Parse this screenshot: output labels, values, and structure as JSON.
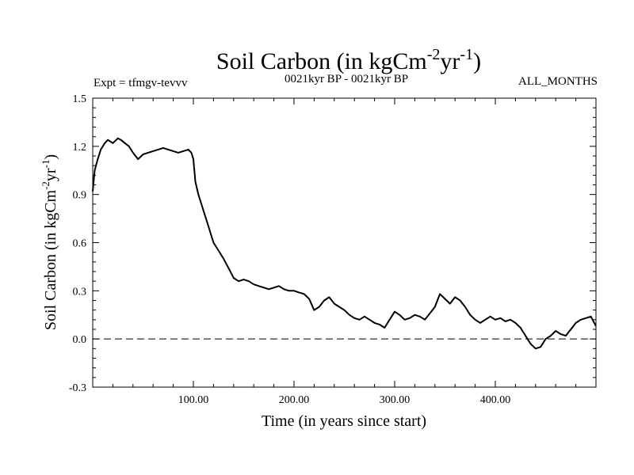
{
  "chart_data": {
    "type": "line",
    "title": {
      "prefix": "Soil Carbon (in kgCm",
      "sup1": "-2",
      "mid": "yr",
      "sup2": "-1",
      "suffix": ")"
    },
    "experiment": "Expt = tfmgv-tevvv",
    "period": "0021kyr BP - 0021kyr BP",
    "months": "ALL_MONTHS",
    "xlabel": "Time (in years since start)",
    "ylabel": {
      "prefix": "Soil Carbon (in kgCm",
      "sup1": "-2",
      "mid": "yr",
      "sup2": "-1",
      "suffix": ")"
    },
    "xlim": [
      0,
      500
    ],
    "ylim": [
      -0.3,
      1.5
    ],
    "x_ticks": [
      100,
      200,
      300,
      400
    ],
    "x_tick_labels": [
      "100.00",
      "200.00",
      "300.00",
      "400.00"
    ],
    "y_ticks": [
      -0.3,
      0.0,
      0.3,
      0.6,
      0.9,
      1.2,
      1.5
    ],
    "y_tick_labels": [
      "-0.3",
      "0.0",
      "0.3",
      "0.6",
      "0.9",
      "1.2",
      "1.5"
    ],
    "reference_line": {
      "y": 0.0,
      "style": "dashed"
    },
    "grid": false,
    "series": [
      {
        "x": [
          0,
          2,
          5,
          8,
          12,
          15,
          20,
          25,
          28,
          32,
          36,
          40,
          45,
          50,
          55,
          60,
          65,
          70,
          75,
          80,
          85,
          90,
          95,
          98,
          100,
          102,
          105,
          110,
          115,
          120,
          125,
          130,
          135,
          140,
          145,
          150,
          155,
          160,
          165,
          170,
          175,
          180,
          185,
          190,
          195,
          200,
          205,
          210,
          215,
          220,
          225,
          230,
          235,
          240,
          245,
          250,
          255,
          260,
          265,
          270,
          275,
          280,
          285,
          290,
          295,
          300,
          305,
          310,
          315,
          320,
          325,
          330,
          335,
          340,
          345,
          350,
          355,
          360,
          365,
          370,
          375,
          380,
          385,
          390,
          395,
          400,
          405,
          410,
          415,
          420,
          425,
          430,
          435,
          440,
          445,
          450,
          455,
          460,
          465,
          470,
          475,
          480,
          485,
          490,
          495,
          500
        ],
        "y": [
          0.92,
          1.05,
          1.12,
          1.18,
          1.22,
          1.24,
          1.22,
          1.25,
          1.24,
          1.22,
          1.2,
          1.16,
          1.12,
          1.15,
          1.16,
          1.17,
          1.18,
          1.19,
          1.18,
          1.17,
          1.16,
          1.17,
          1.18,
          1.16,
          1.12,
          0.98,
          0.9,
          0.8,
          0.7,
          0.6,
          0.55,
          0.5,
          0.44,
          0.38,
          0.36,
          0.37,
          0.36,
          0.34,
          0.33,
          0.32,
          0.31,
          0.32,
          0.33,
          0.31,
          0.3,
          0.3,
          0.29,
          0.28,
          0.25,
          0.18,
          0.2,
          0.24,
          0.26,
          0.22,
          0.2,
          0.18,
          0.15,
          0.13,
          0.12,
          0.14,
          0.12,
          0.1,
          0.09,
          0.07,
          0.12,
          0.17,
          0.15,
          0.12,
          0.13,
          0.15,
          0.14,
          0.12,
          0.16,
          0.2,
          0.28,
          0.25,
          0.22,
          0.26,
          0.24,
          0.2,
          0.15,
          0.12,
          0.1,
          0.12,
          0.14,
          0.12,
          0.13,
          0.11,
          0.12,
          0.1,
          0.07,
          0.02,
          -0.03,
          -0.06,
          -0.05,
          0.0,
          0.02,
          0.05,
          0.03,
          0.02,
          0.06,
          0.1,
          0.12,
          0.13,
          0.14,
          0.08
        ]
      }
    ]
  }
}
